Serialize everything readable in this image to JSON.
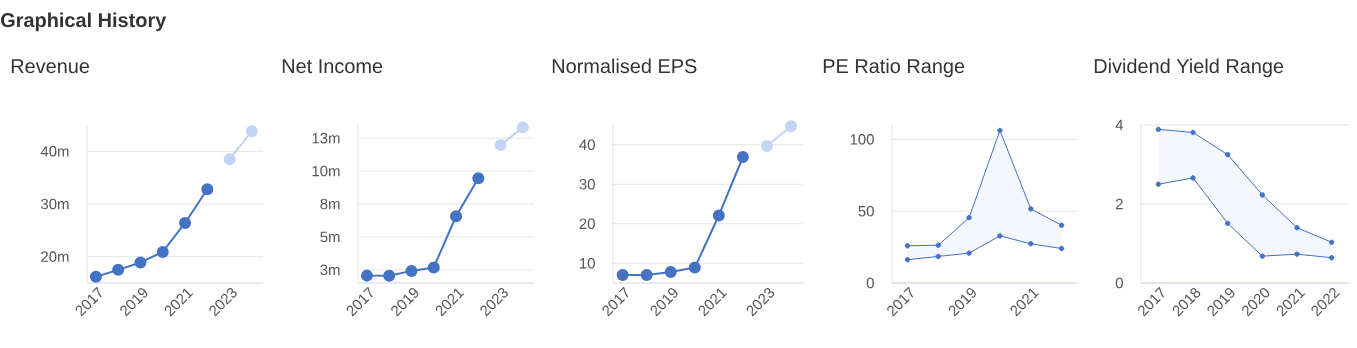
{
  "chart_data": [
    {
      "type": "line",
      "title": "Revenue",
      "annotations": [
        "Graphical History"
      ],
      "xlim": [
        2016.6,
        2024.5
      ],
      "xticks": [
        2017,
        2019,
        2021,
        2023
      ],
      "ylim": [
        15,
        45
      ],
      "yticks": [
        {
          "value": 20,
          "label": "20m"
        },
        {
          "value": 30,
          "label": "30m"
        },
        {
          "value": 40,
          "label": "40m"
        }
      ],
      "grid": "y",
      "marker": "circle",
      "series": [
        {
          "color": "#4472c4",
          "x": [
            2017,
            2018,
            2019,
            2020,
            2021,
            2022
          ],
          "values": [
            16.2,
            17.5,
            18.9,
            20.9,
            26.4,
            32.8
          ]
        },
        {
          "color": "#c3d5f4",
          "x": [
            2023,
            2024
          ],
          "values": [
            38.5,
            43.8
          ]
        }
      ]
    },
    {
      "type": "line",
      "title": "Net Income",
      "xlim": [
        2016.6,
        2024.5
      ],
      "xticks": [
        2017,
        2019,
        2021,
        2023
      ],
      "ylim": [
        1.5,
        13.5
      ],
      "yticks": [
        {
          "value": 2.5,
          "label": "3m"
        },
        {
          "value": 5,
          "label": "5m"
        },
        {
          "value": 7.5,
          "label": "8m"
        },
        {
          "value": 10,
          "label": "10m"
        },
        {
          "value": 12.5,
          "label": "13m"
        }
      ],
      "grid": "y",
      "marker": "circle",
      "series": [
        {
          "color": "#4472c4",
          "x": [
            2017,
            2018,
            2019,
            2020,
            2021,
            2022
          ],
          "values": [
            2.06,
            2.05,
            2.42,
            2.68,
            6.57,
            9.46
          ]
        },
        {
          "color": "#c3d5f4",
          "x": [
            2023,
            2024
          ],
          "values": [
            11.98,
            13.32
          ]
        }
      ]
    },
    {
      "type": "line",
      "title": "Normalised EPS",
      "xlim": [
        2016.6,
        2024.5
      ],
      "xticks": [
        2017,
        2019,
        2021,
        2023
      ],
      "ylim": [
        5,
        45
      ],
      "yticks": [
        10,
        20,
        30,
        40
      ],
      "grid": "y",
      "marker": "circle",
      "series": [
        {
          "color": "#4472c4",
          "x": [
            2017,
            2018,
            2019,
            2020,
            2021,
            2022
          ],
          "values": [
            7.0,
            7.0,
            7.8,
            8.9,
            22.1,
            36.9
          ]
        },
        {
          "color": "#c3d5f4",
          "x": [
            2023,
            2024
          ],
          "values": [
            39.7,
            44.7
          ]
        }
      ]
    },
    {
      "type": "line",
      "title": "PE Ratio Range",
      "xlim": [
        2016.5,
        2022.5
      ],
      "xticks": [
        2017,
        2019,
        2021
      ],
      "ylim": [
        0,
        110
      ],
      "yticks": [
        0,
        50,
        100
      ],
      "grid": "y",
      "marker": "circle",
      "series": [
        {
          "color": "#4472c4",
          "x": [
            2017,
            2018,
            2019,
            2020,
            2021,
            2022
          ],
          "values": [
            25.9,
            26.3,
            45.5,
            106.2,
            51.6,
            40.2
          ],
          "lower": [
            16.2,
            18.5,
            20.8,
            32.8,
            27.3,
            24.0
          ],
          "upper": [
            25.9,
            26.3,
            45.5,
            106.2,
            51.6,
            40.2
          ]
        },
        {
          "color": "#4472c4",
          "x": [
            2017,
            2018,
            2019,
            2020,
            2021,
            2022
          ],
          "values": [
            16.2,
            18.5,
            20.8,
            32.8,
            27.3,
            24.0
          ]
        }
      ]
    },
    {
      "type": "line",
      "title": "Dividend Yield Range",
      "xlim": [
        2016.5,
        2022.5
      ],
      "xticks": [
        2017,
        2018,
        2019,
        2020,
        2021,
        2022
      ],
      "ylim": [
        0,
        4
      ],
      "yticks": [
        0,
        2,
        4
      ],
      "grid": "y",
      "marker": "circle",
      "series": [
        {
          "color": "#4472c4",
          "x": [
            2017,
            2018,
            2019,
            2020,
            2021,
            2022
          ],
          "values": [
            3.89,
            3.81,
            3.25,
            2.23,
            1.4,
            1.03
          ],
          "lower": [
            2.5,
            2.66,
            1.51,
            0.68,
            0.73,
            0.64
          ],
          "upper": [
            3.89,
            3.81,
            3.25,
            2.23,
            1.4,
            1.03
          ]
        },
        {
          "color": "#4472c4",
          "x": [
            2017,
            2018,
            2019,
            2020,
            2021,
            2022
          ],
          "values": [
            2.5,
            2.66,
            1.51,
            0.68,
            0.73,
            0.64
          ]
        }
      ]
    }
  ]
}
